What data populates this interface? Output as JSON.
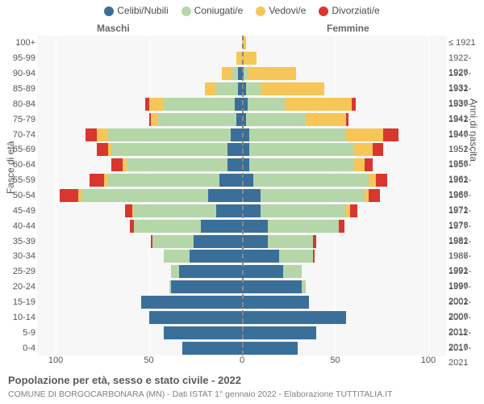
{
  "legend": {
    "items": [
      {
        "label": "Celibi/Nubili",
        "color": "#3a6f9a"
      },
      {
        "label": "Coniugati/e",
        "color": "#b5d6a8"
      },
      {
        "label": "Vedovi/e",
        "color": "#f6c758"
      },
      {
        "label": "Divorziati/e",
        "color": "#d9362f"
      }
    ]
  },
  "gender": {
    "male": "Maschi",
    "female": "Femmine"
  },
  "y_axis_left_title": "Fasce di età",
  "y_axis_right_title": "Anni di nascita",
  "x_axis": {
    "ticks_left": [
      100,
      50,
      0
    ],
    "ticks_right": [
      50,
      100
    ],
    "max": 110
  },
  "colors": {
    "celibi": "#3a6f9a",
    "coniugati": "#b5d6a8",
    "vedovi": "#f6c758",
    "divorziati": "#d9362f",
    "plot_bg": "#f7f7f7",
    "grid": "#ffffff",
    "center": "#888888"
  },
  "rows": [
    {
      "age": "100+",
      "birth": "≤ 1921",
      "m": [
        0,
        0,
        0,
        0
      ],
      "f": [
        0,
        0,
        2,
        0
      ]
    },
    {
      "age": "95-99",
      "birth": "1922-1926",
      "m": [
        0,
        0,
        3,
        0
      ],
      "f": [
        0,
        0,
        8,
        0
      ]
    },
    {
      "age": "90-94",
      "birth": "1927-1931",
      "m": [
        2,
        3,
        6,
        0
      ],
      "f": [
        1,
        2,
        26,
        0
      ]
    },
    {
      "age": "85-89",
      "birth": "1932-1936",
      "m": [
        2,
        12,
        6,
        0
      ],
      "f": [
        2,
        8,
        34,
        0
      ]
    },
    {
      "age": "80-84",
      "birth": "1937-1941",
      "m": [
        4,
        38,
        8,
        2
      ],
      "f": [
        3,
        20,
        36,
        2
      ]
    },
    {
      "age": "75-79",
      "birth": "1942-1946",
      "m": [
        3,
        42,
        4,
        1
      ],
      "f": [
        2,
        32,
        22,
        1
      ]
    },
    {
      "age": "70-74",
      "birth": "1947-1951",
      "m": [
        6,
        66,
        6,
        6
      ],
      "f": [
        4,
        52,
        20,
        8
      ]
    },
    {
      "age": "65-69",
      "birth": "1952-1956",
      "m": [
        8,
        62,
        2,
        6
      ],
      "f": [
        4,
        56,
        10,
        6
      ]
    },
    {
      "age": "60-64",
      "birth": "1957-1961",
      "m": [
        8,
        54,
        2,
        6
      ],
      "f": [
        4,
        56,
        6,
        4
      ]
    },
    {
      "age": "55-59",
      "birth": "1962-1966",
      "m": [
        12,
        60,
        2,
        8
      ],
      "f": [
        6,
        62,
        4,
        6
      ]
    },
    {
      "age": "50-54",
      "birth": "1967-1971",
      "m": [
        18,
        68,
        2,
        10
      ],
      "f": [
        10,
        56,
        2,
        6
      ]
    },
    {
      "age": "45-49",
      "birth": "1972-1976",
      "m": [
        14,
        44,
        1,
        4
      ],
      "f": [
        10,
        46,
        2,
        4
      ]
    },
    {
      "age": "40-44",
      "birth": "1977-1981",
      "m": [
        22,
        36,
        0,
        2
      ],
      "f": [
        14,
        38,
        0,
        3
      ]
    },
    {
      "age": "35-39",
      "birth": "1982-1986",
      "m": [
        26,
        22,
        0,
        1
      ],
      "f": [
        14,
        24,
        0,
        2
      ]
    },
    {
      "age": "30-34",
      "birth": "1987-1991",
      "m": [
        28,
        14,
        0,
        0
      ],
      "f": [
        20,
        18,
        0,
        1
      ]
    },
    {
      "age": "25-29",
      "birth": "1992-1996",
      "m": [
        34,
        4,
        0,
        0
      ],
      "f": [
        22,
        10,
        0,
        0
      ]
    },
    {
      "age": "20-24",
      "birth": "1997-2001",
      "m": [
        38,
        1,
        0,
        0
      ],
      "f": [
        32,
        2,
        0,
        0
      ]
    },
    {
      "age": "15-19",
      "birth": "2002-2006",
      "m": [
        54,
        0,
        0,
        0
      ],
      "f": [
        36,
        0,
        0,
        0
      ]
    },
    {
      "age": "10-14",
      "birth": "2007-2011",
      "m": [
        50,
        0,
        0,
        0
      ],
      "f": [
        56,
        0,
        0,
        0
      ]
    },
    {
      "age": "5-9",
      "birth": "2012-2016",
      "m": [
        42,
        0,
        0,
        0
      ],
      "f": [
        40,
        0,
        0,
        0
      ]
    },
    {
      "age": "0-4",
      "birth": "2017-2021",
      "m": [
        32,
        0,
        0,
        0
      ],
      "f": [
        30,
        0,
        0,
        0
      ]
    }
  ],
  "caption": "Popolazione per età, sesso e stato civile - 2022",
  "subcaption": "COMUNE DI BORGOCARBONARA (MN) - Dati ISTAT 1° gennaio 2022 - Elaborazione TUTTITALIA.IT"
}
